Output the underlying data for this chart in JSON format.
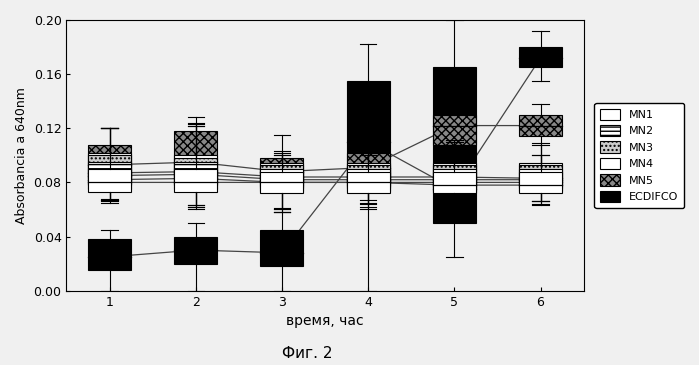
{
  "xlabel": "время, час",
  "ylabel": "Absorbancia a 640nm",
  "caption": "Фиг. 2",
  "xlim": [
    0.5,
    6.5
  ],
  "ylim": [
    0.0,
    0.2
  ],
  "yticks": [
    0.0,
    0.04,
    0.08,
    0.12,
    0.16,
    0.2
  ],
  "xticks": [
    1,
    2,
    3,
    4,
    5,
    6
  ],
  "series_names": [
    "MN1",
    "MN2",
    "MN3",
    "MN4",
    "MN5",
    "ECDIFCO"
  ],
  "boxes": {
    "MN1": [
      {
        "x": 1,
        "whislo": 0.065,
        "q1": 0.073,
        "med": 0.08,
        "q3": 0.09,
        "whishi": 0.12
      },
      {
        "x": 2,
        "whislo": 0.06,
        "q1": 0.073,
        "med": 0.08,
        "q3": 0.09,
        "whishi": 0.122
      },
      {
        "x": 3,
        "whislo": 0.058,
        "q1": 0.072,
        "med": 0.08,
        "q3": 0.088,
        "whishi": 0.1
      },
      {
        "x": 4,
        "whislo": 0.06,
        "q1": 0.072,
        "med": 0.08,
        "q3": 0.088,
        "whishi": 0.1
      },
      {
        "x": 5,
        "whislo": 0.063,
        "q1": 0.072,
        "med": 0.078,
        "q3": 0.088,
        "whishi": 0.108
      },
      {
        "x": 6,
        "whislo": 0.063,
        "q1": 0.072,
        "med": 0.078,
        "q3": 0.088,
        "whishi": 0.1
      }
    ],
    "MN2": [
      {
        "x": 1,
        "whislo": 0.066,
        "q1": 0.075,
        "med": 0.082,
        "q3": 0.095,
        "whishi": 0.12
      },
      {
        "x": 2,
        "whislo": 0.062,
        "q1": 0.075,
        "med": 0.083,
        "q3": 0.095,
        "whishi": 0.122
      },
      {
        "x": 3,
        "whislo": 0.058,
        "q1": 0.074,
        "med": 0.08,
        "q3": 0.09,
        "whishi": 0.1
      },
      {
        "x": 4,
        "whislo": 0.062,
        "q1": 0.074,
        "med": 0.08,
        "q3": 0.09,
        "whishi": 0.1
      },
      {
        "x": 5,
        "whislo": 0.065,
        "q1": 0.074,
        "med": 0.08,
        "q3": 0.09,
        "whishi": 0.108
      },
      {
        "x": 6,
        "whislo": 0.064,
        "q1": 0.074,
        "med": 0.08,
        "q3": 0.09,
        "whishi": 0.1
      }
    ],
    "MN3": [
      {
        "x": 1,
        "whislo": 0.067,
        "q1": 0.078,
        "med": 0.085,
        "q3": 0.1,
        "whishi": 0.12
      },
      {
        "x": 2,
        "whislo": 0.062,
        "q1": 0.078,
        "med": 0.086,
        "q3": 0.098,
        "whishi": 0.123
      },
      {
        "x": 3,
        "whislo": 0.06,
        "q1": 0.076,
        "med": 0.082,
        "q3": 0.093,
        "whishi": 0.102
      },
      {
        "x": 4,
        "whislo": 0.064,
        "q1": 0.076,
        "med": 0.082,
        "q3": 0.093,
        "whishi": 0.11
      },
      {
        "x": 5,
        "whislo": 0.067,
        "q1": 0.076,
        "med": 0.082,
        "q3": 0.093,
        "whishi": 0.11
      },
      {
        "x": 6,
        "whislo": 0.066,
        "q1": 0.076,
        "med": 0.082,
        "q3": 0.093,
        "whishi": 0.108
      }
    ],
    "MN4": [
      {
        "x": 1,
        "whislo": 0.067,
        "q1": 0.079,
        "med": 0.087,
        "q3": 0.102,
        "whishi": 0.12
      },
      {
        "x": 2,
        "whislo": 0.063,
        "q1": 0.079,
        "med": 0.088,
        "q3": 0.1,
        "whishi": 0.124
      },
      {
        "x": 3,
        "whislo": 0.06,
        "q1": 0.077,
        "med": 0.084,
        "q3": 0.094,
        "whishi": 0.103
      },
      {
        "x": 4,
        "whislo": 0.065,
        "q1": 0.077,
        "med": 0.084,
        "q3": 0.094,
        "whishi": 0.112
      },
      {
        "x": 5,
        "whislo": 0.067,
        "q1": 0.077,
        "med": 0.084,
        "q3": 0.094,
        "whishi": 0.111
      },
      {
        "x": 6,
        "whislo": 0.066,
        "q1": 0.077,
        "med": 0.083,
        "q3": 0.094,
        "whishi": 0.109
      }
    ],
    "MN5": [
      {
        "x": 1,
        "whislo": 0.068,
        "q1": 0.083,
        "med": 0.093,
        "q3": 0.108,
        "whishi": 0.12
      },
      {
        "x": 2,
        "whislo": 0.063,
        "q1": 0.085,
        "med": 0.095,
        "q3": 0.118,
        "whishi": 0.128
      },
      {
        "x": 3,
        "whislo": 0.061,
        "q1": 0.08,
        "med": 0.088,
        "q3": 0.098,
        "whishi": 0.115
      },
      {
        "x": 4,
        "whislo": 0.067,
        "q1": 0.083,
        "med": 0.091,
        "q3": 0.102,
        "whishi": 0.116
      },
      {
        "x": 5,
        "whislo": 0.068,
        "q1": 0.108,
        "med": 0.122,
        "q3": 0.13,
        "whishi": 0.138
      },
      {
        "x": 6,
        "whislo": 0.066,
        "q1": 0.114,
        "med": 0.122,
        "q3": 0.13,
        "whishi": 0.138
      }
    ],
    "ECDIFCO": [
      {
        "x": 1,
        "whislo": 0.0,
        "q1": 0.015,
        "med": 0.025,
        "q3": 0.038,
        "whishi": 0.045
      },
      {
        "x": 2,
        "whislo": 0.0,
        "q1": 0.02,
        "med": 0.03,
        "q3": 0.04,
        "whishi": 0.05
      },
      {
        "x": 3,
        "whislo": 0.0,
        "q1": 0.018,
        "med": 0.028,
        "q3": 0.045,
        "whishi": 0.058
      },
      {
        "x": 4,
        "whislo": 0.0,
        "q1": 0.08,
        "med": 0.11,
        "q3": 0.155,
        "whishi": 0.182
      },
      {
        "x": 5,
        "whislo": 0.025,
        "q1": 0.05,
        "med": 0.075,
        "q3": 0.165,
        "whishi": 0.2
      },
      {
        "x": 6,
        "whislo": 0.155,
        "q1": 0.165,
        "med": 0.172,
        "q3": 0.18,
        "whishi": 0.192
      }
    ]
  },
  "line_medians": {
    "MN1": [
      0.08,
      0.08,
      0.08,
      0.08,
      0.078,
      0.078
    ],
    "MN2": [
      0.082,
      0.083,
      0.08,
      0.08,
      0.08,
      0.08
    ],
    "MN3": [
      0.085,
      0.086,
      0.082,
      0.082,
      0.082,
      0.082
    ],
    "MN4": [
      0.087,
      0.088,
      0.084,
      0.084,
      0.084,
      0.083
    ],
    "MN5": [
      0.093,
      0.095,
      0.088,
      0.091,
      0.122,
      0.122
    ],
    "ECDIFCO": [
      0.025,
      0.03,
      0.028,
      0.11,
      0.075,
      0.172
    ]
  },
  "fill_configs": {
    "MN1": {
      "facecolor": "white",
      "edgecolor": "black",
      "hatch": "",
      "lw": 0.8,
      "zorder": 6
    },
    "MN2": {
      "facecolor": "white",
      "edgecolor": "black",
      "hatch": "----",
      "lw": 0.8,
      "zorder": 5
    },
    "MN3": {
      "facecolor": "#cccccc",
      "edgecolor": "black",
      "hatch": "....",
      "lw": 0.8,
      "zorder": 4
    },
    "MN4": {
      "facecolor": "white",
      "edgecolor": "black",
      "hatch": "",
      "lw": 0.8,
      "zorder": 3
    },
    "MN5": {
      "facecolor": "#888888",
      "edgecolor": "black",
      "hatch": "xxxx",
      "lw": 0.8,
      "zorder": 2
    },
    "ECDIFCO": {
      "facecolor": "black",
      "edgecolor": "black",
      "hatch": "",
      "lw": 0.8,
      "zorder": 1
    }
  },
  "legend_configs": [
    {
      "facecolor": "white",
      "edgecolor": "black",
      "hatch": "",
      "lw": 0.8,
      "label": "MN1"
    },
    {
      "facecolor": "white",
      "edgecolor": "black",
      "hatch": "----",
      "lw": 0.8,
      "label": "MN2"
    },
    {
      "facecolor": "#cccccc",
      "edgecolor": "black",
      "hatch": "....",
      "lw": 0.8,
      "label": "MN3"
    },
    {
      "facecolor": "white",
      "edgecolor": "black",
      "hatch": "",
      "lw": 0.8,
      "label": "MN4"
    },
    {
      "facecolor": "#888888",
      "edgecolor": "black",
      "hatch": "xxxx",
      "lw": 0.8,
      "label": "MN5"
    },
    {
      "facecolor": "black",
      "edgecolor": "black",
      "hatch": "",
      "lw": 0.8,
      "label": "ECDIFCO"
    }
  ],
  "box_width": 0.5,
  "background_color": "#f0f0f0",
  "plot_bg": "#f0f0f0"
}
